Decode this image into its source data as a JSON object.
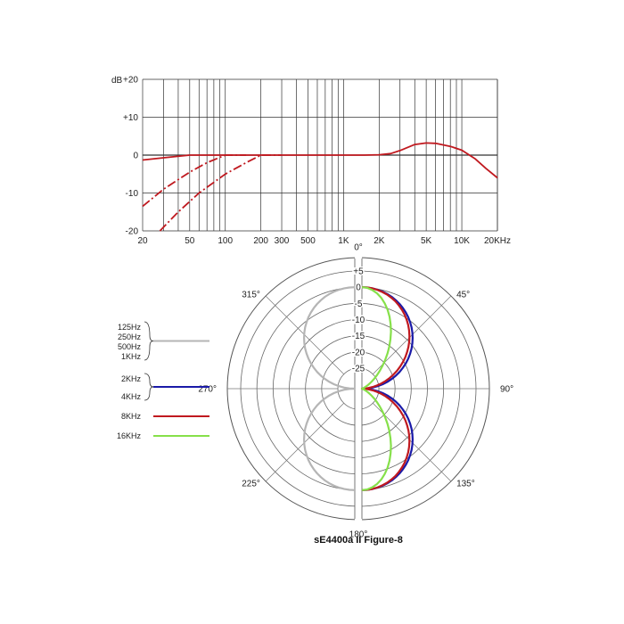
{
  "chart_data": [
    {
      "type": "line",
      "title": "",
      "xlabel": "",
      "ylabel": "dB",
      "x_scale": "log",
      "xlim": [
        20,
        20000
      ],
      "ylim": [
        -20,
        20
      ],
      "grid": true,
      "y_ticks": [
        20,
        10,
        0,
        -10,
        -20
      ],
      "y_tick_labels": [
        "+20",
        "+10",
        "0",
        "-10",
        "-20"
      ],
      "x_ticks": [
        20,
        50,
        100,
        200,
        300,
        500,
        1000,
        2000,
        5000,
        10000,
        20000
      ],
      "x_tick_labels": [
        "20",
        "50",
        "100",
        "200",
        "300",
        "500",
        "1K",
        "2K",
        "5K",
        "10K",
        "20KHz"
      ],
      "color": "#c0191f",
      "series": [
        {
          "style": "solid",
          "x": [
            20,
            30,
            50,
            70,
            100,
            200,
            500,
            1000,
            1500,
            2000,
            2500,
            3000,
            4000,
            5000,
            6000,
            8000,
            10000,
            13000,
            16000,
            20000
          ],
          "y": [
            -1.3,
            -0.7,
            0,
            0,
            0,
            0,
            0,
            0,
            0,
            0.1,
            0.4,
            1.2,
            2.8,
            3.2,
            3.1,
            2.3,
            1.3,
            -1,
            -3.5,
            -6
          ]
        },
        {
          "style": "dashed",
          "x": [
            20,
            30,
            50,
            70,
            100,
            150
          ],
          "y": [
            -13.5,
            -9,
            -4.5,
            -2,
            0,
            0
          ]
        },
        {
          "style": "dashed",
          "x": [
            28,
            40,
            60,
            100,
            150,
            200,
            250,
            300
          ],
          "y": [
            -20,
            -15,
            -10,
            -5,
            -2,
            0,
            0,
            0
          ]
        }
      ]
    },
    {
      "type": "polar",
      "title": "sE4400a II Figure-8",
      "angle_labels": [
        "0°",
        "45°",
        "90°",
        "135°",
        "180°",
        "225°",
        "270°",
        "315°"
      ],
      "radial_labels": [
        "+5",
        "0",
        "-5",
        "-10",
        "-15",
        "-20",
        "-25"
      ],
      "radial_values": [
        5,
        0,
        -5,
        -10,
        -15,
        -20,
        -25
      ],
      "rlim": [
        -25,
        5
      ],
      "legend": [
        {
          "lines": [
            "125Hz",
            "250Hz",
            "500Hz",
            "1KHz"
          ],
          "color": "#b5b5b5"
        },
        {
          "lines": [
            "2KHz",
            "4KHz"
          ],
          "color": "#1a1aa8"
        },
        {
          "lines": [
            "8KHz"
          ],
          "color": "#c0191f"
        },
        {
          "lines": [
            "16KHz"
          ],
          "color": "#86e04a"
        }
      ],
      "series": [
        {
          "name": "125Hz / 250Hz / 500Hz / 1KHz",
          "color": "#b5b5b5",
          "side": "left",
          "sharpness": 1.0
        },
        {
          "name": "2KHz / 4KHz",
          "color": "#1a1aa8",
          "side": "right",
          "sharpness": 1.0
        },
        {
          "name": "8KHz",
          "color": "#c0191f",
          "side": "right",
          "sharpness": 1.2
        },
        {
          "name": "16KHz",
          "color": "#86e04a",
          "side": "right",
          "sharpness": 4.0
        }
      ]
    }
  ]
}
